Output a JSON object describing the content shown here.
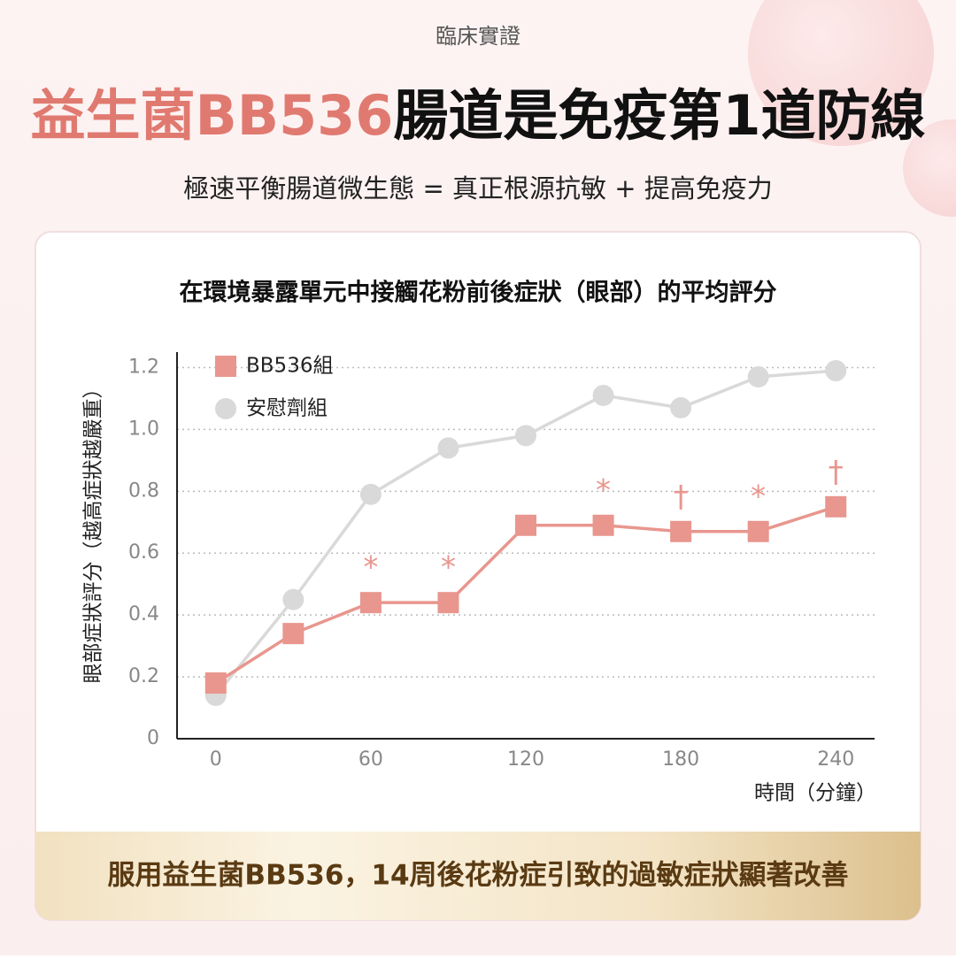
{
  "header": {
    "eyebrow": "臨床實證",
    "title_highlight": "益生菌BB536",
    "title_rest": "腸道是免疫第1道防線",
    "subtitle": "極速平衡腸道微生態 = 真正根源抗敏 + 提高免疫力"
  },
  "chart_data": {
    "type": "line",
    "title": "在環境暴露單元中接觸花粉前後症狀（眼部）的平均評分",
    "x": [
      0,
      30,
      60,
      90,
      120,
      150,
      180,
      210,
      240
    ],
    "series": [
      {
        "name": "BB536組",
        "color": "#e8968e",
        "marker": "square",
        "values": [
          0.18,
          0.34,
          0.44,
          0.44,
          0.69,
          0.69,
          0.67,
          0.67,
          0.75
        ]
      },
      {
        "name": "安慰劑組",
        "color": "#d9d9d9",
        "marker": "circle",
        "values": [
          0.14,
          0.45,
          0.79,
          0.94,
          0.98,
          1.11,
          1.07,
          1.17,
          1.19
        ]
      }
    ],
    "annotations": [
      {
        "x": 60,
        "label": "*"
      },
      {
        "x": 90,
        "label": "*"
      },
      {
        "x": 150,
        "label": "*"
      },
      {
        "x": 180,
        "label": "†"
      },
      {
        "x": 210,
        "label": "*"
      },
      {
        "x": 240,
        "label": "†"
      }
    ],
    "xlabel": "時間（分鐘）",
    "ylabel": "眼部症狀評分（越高症狀越嚴重）",
    "xlim": [
      -15,
      255
    ],
    "xticks": [
      0,
      60,
      120,
      180,
      240
    ],
    "ylim": [
      0,
      1.25
    ],
    "yticks": [
      0,
      0.2,
      0.4,
      0.6,
      0.8,
      {
        "value": 1,
        "label": "1.0"
      },
      1.2
    ],
    "grid": true
  },
  "footer": {
    "text": "服用益生菌BB536，14周後花粉症引致的過敏症狀顯著改善"
  }
}
